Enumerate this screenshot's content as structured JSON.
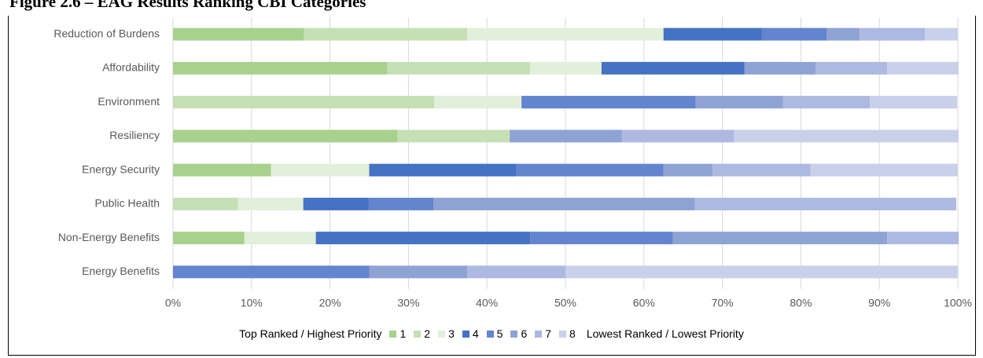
{
  "chart_data": {
    "type": "stacked-bar-horizontal",
    "title": "Figure 2.6 – EAG Results Ranking CBI Categories",
    "categories": [
      "Reduction of Burdens",
      "Affordability",
      "Environment",
      "Resiliency",
      "Energy Security",
      "Public Health",
      "Non-Energy Benefits",
      "Energy Benefits"
    ],
    "legend_prefix": "Top Ranked / Highest Priority",
    "legend_suffix": "Lowest Ranked / Lowest Priority",
    "series": [
      {
        "name": "1",
        "color": "#a9d18e",
        "values": [
          16.7,
          27.3,
          0,
          28.6,
          12.5,
          0,
          9.1,
          0
        ]
      },
      {
        "name": "2",
        "color": "#c5e0b4",
        "values": [
          20.8,
          18.2,
          33.3,
          14.3,
          0,
          8.3,
          0,
          0
        ]
      },
      {
        "name": "3",
        "color": "#e2efda",
        "values": [
          25,
          9.1,
          11.1,
          0,
          12.5,
          8.3,
          9.1,
          0
        ]
      },
      {
        "name": "4",
        "color": "#4472c4",
        "values": [
          12.5,
          18.2,
          0,
          0,
          18.75,
          8.3,
          27.3,
          0
        ]
      },
      {
        "name": "5",
        "color": "#6384cf",
        "values": [
          8.3,
          0,
          22.2,
          0,
          18.75,
          8.3,
          18.2,
          25
        ]
      },
      {
        "name": "6",
        "color": "#8fa2d4",
        "values": [
          4.2,
          9.1,
          11.1,
          14.3,
          6.25,
          33.3,
          27.3,
          12.5
        ]
      },
      {
        "name": "7",
        "color": "#adb9e0",
        "values": [
          8.3,
          9.1,
          11.1,
          14.3,
          12.5,
          33.3,
          9.1,
          12.5
        ]
      },
      {
        "name": "8",
        "color": "#c9d0ea",
        "values": [
          4.2,
          9.1,
          11.1,
          28.6,
          18.75,
          0,
          0,
          50
        ]
      }
    ],
    "xlim": [
      0,
      100
    ],
    "xticks": [
      {
        "value": 0,
        "label": "0%"
      },
      {
        "value": 10,
        "label": "10%"
      },
      {
        "value": 20,
        "label": "20%"
      },
      {
        "value": 30,
        "label": "30%"
      },
      {
        "value": 40,
        "label": "40%"
      },
      {
        "value": 50,
        "label": "50%"
      },
      {
        "value": 60,
        "label": "60%"
      },
      {
        "value": 70,
        "label": "70%"
      },
      {
        "value": 80,
        "label": "80%"
      },
      {
        "value": 90,
        "label": "90%"
      },
      {
        "value": 100,
        "label": "100%"
      }
    ],
    "grid": true
  }
}
